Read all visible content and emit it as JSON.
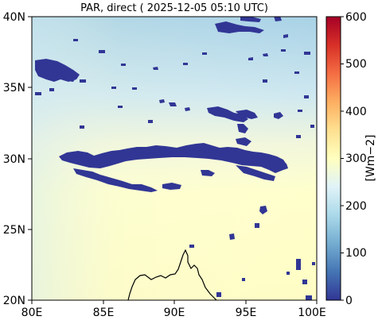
{
  "map": {
    "title": "PAR, direct ( 2025-12-05 05:10 UTC)",
    "x_ticks": [
      "80E",
      "85E",
      "90E",
      "95E",
      "100E"
    ],
    "y_ticks": [
      "40N",
      "35N",
      "30N",
      "25N",
      "20N"
    ],
    "extent": {
      "lon": [
        80,
        100
      ],
      "lat": [
        20,
        40
      ]
    }
  },
  "colorbar": {
    "label": "[Wm−2]",
    "ticks": [
      "600",
      "500",
      "400",
      "300",
      "200",
      "100",
      "0"
    ],
    "range": [
      0,
      600
    ],
    "colormap": "RdYlBu_r"
  },
  "colors": {
    "cloud": "#313695",
    "coast": "#000000",
    "field_light": "#ffffcc",
    "field_blue": "#a9d4e8"
  }
}
